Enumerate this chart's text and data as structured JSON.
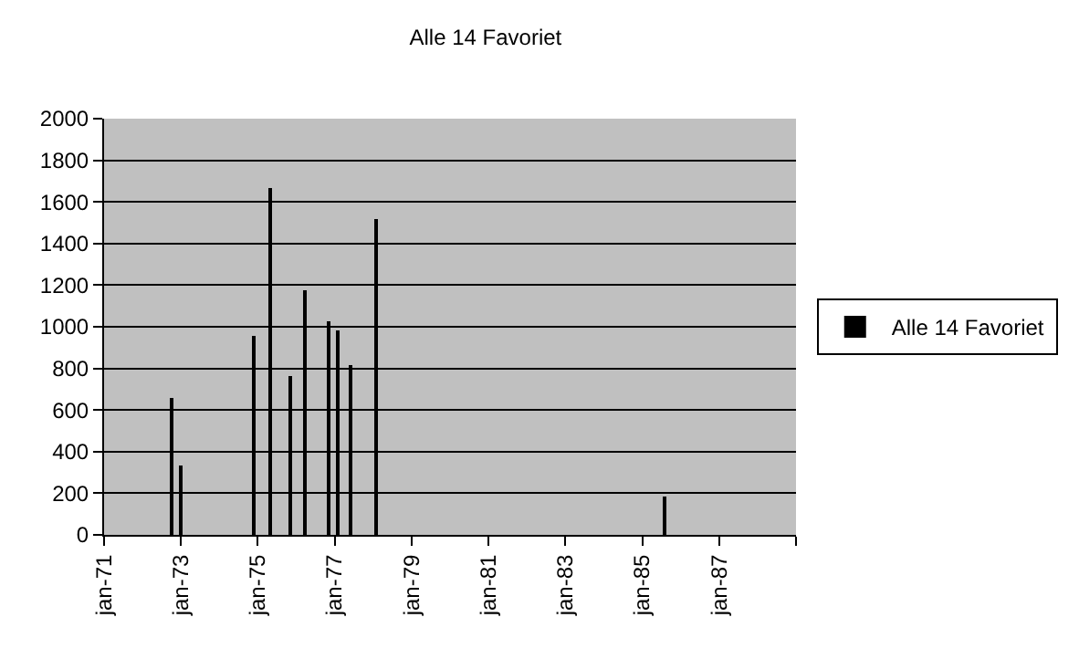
{
  "chart_data": {
    "type": "bar",
    "title": "Alle 14 Favoriet",
    "x": [
      "1972-10",
      "1973-01",
      "1974-12",
      "1975-05",
      "1975-11",
      "1976-04",
      "1976-11",
      "1977-02",
      "1977-06",
      "1978-02",
      "1985-08"
    ],
    "series": [
      {
        "name": "Alle 14 Favoriet",
        "color": "#000000",
        "values": [
          660,
          335,
          960,
          1670,
          760,
          1175,
          1025,
          985,
          815,
          1515,
          180
        ]
      }
    ],
    "xlim": [
      "1971-01",
      "1989-01"
    ],
    "xticks": [
      {
        "value": "1971-01",
        "label": "jan-71"
      },
      {
        "value": "1973-01",
        "label": "jan-73"
      },
      {
        "value": "1975-01",
        "label": "jan-75"
      },
      {
        "value": "1977-01",
        "label": "jan-77"
      },
      {
        "value": "1979-01",
        "label": "jan-79"
      },
      {
        "value": "1981-01",
        "label": "jan-81"
      },
      {
        "value": "1983-01",
        "label": "jan-83"
      },
      {
        "value": "1985-01",
        "label": "jan-85"
      },
      {
        "value": "1987-01",
        "label": "jan-87"
      },
      {
        "value": "1989-01",
        "label": null
      }
    ],
    "ylim": [
      0,
      2000
    ],
    "yticks": [
      0,
      200,
      400,
      600,
      800,
      1000,
      1200,
      1400,
      1600,
      1800,
      2000
    ],
    "grid": "y",
    "legend": "right"
  }
}
